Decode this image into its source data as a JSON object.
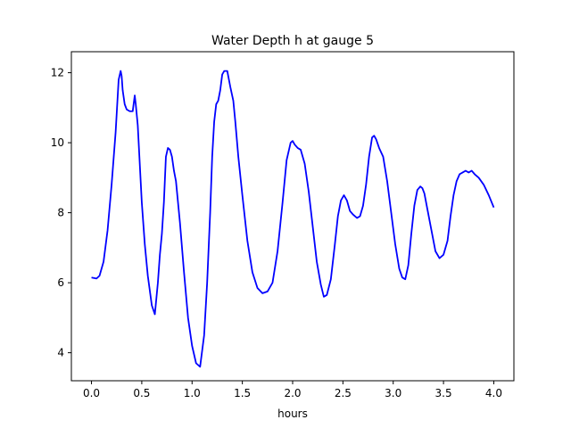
{
  "chart_data": {
    "type": "line",
    "title": "Water Depth h at gauge 5",
    "xlabel": "hours",
    "ylabel": "",
    "xlim": [
      -0.2,
      4.2
    ],
    "ylim": [
      3.2,
      12.6
    ],
    "xticks": [
      0.0,
      0.5,
      1.0,
      1.5,
      2.0,
      2.5,
      3.0,
      3.5,
      4.0
    ],
    "xtick_labels": [
      "0.0",
      "0.5",
      "1.0",
      "1.5",
      "2.0",
      "2.5",
      "3.0",
      "3.5",
      "4.0"
    ],
    "yticks": [
      4,
      6,
      8,
      10,
      12
    ],
    "ytick_labels": [
      "4",
      "6",
      "8",
      "10",
      "12"
    ],
    "grid": false,
    "series": [
      {
        "color": "#0000ff",
        "x": [
          0.0,
          0.05,
          0.08,
          0.12,
          0.16,
          0.2,
          0.24,
          0.27,
          0.29,
          0.3,
          0.31,
          0.33,
          0.35,
          0.38,
          0.41,
          0.43,
          0.44,
          0.46,
          0.48,
          0.5,
          0.53,
          0.56,
          0.6,
          0.63,
          0.66,
          0.68,
          0.7,
          0.72,
          0.74,
          0.76,
          0.78,
          0.8,
          0.82,
          0.84,
          0.88,
          0.92,
          0.96,
          1.0,
          1.04,
          1.08,
          1.12,
          1.15,
          1.18,
          1.2,
          1.22,
          1.24,
          1.26,
          1.28,
          1.3,
          1.32,
          1.35,
          1.38,
          1.41,
          1.43,
          1.46,
          1.5,
          1.55,
          1.6,
          1.65,
          1.7,
          1.75,
          1.8,
          1.85,
          1.9,
          1.94,
          1.98,
          2.0,
          2.02,
          2.05,
          2.08,
          2.12,
          2.16,
          2.2,
          2.24,
          2.28,
          2.31,
          2.34,
          2.38,
          2.42,
          2.45,
          2.48,
          2.51,
          2.54,
          2.57,
          2.6,
          2.64,
          2.67,
          2.7,
          2.73,
          2.76,
          2.79,
          2.81,
          2.83,
          2.86,
          2.9,
          2.94,
          2.98,
          3.02,
          3.06,
          3.09,
          3.12,
          3.15,
          3.18,
          3.21,
          3.24,
          3.27,
          3.29,
          3.31,
          3.34,
          3.38,
          3.42,
          3.46,
          3.5,
          3.54,
          3.57,
          3.6,
          3.63,
          3.66,
          3.69,
          3.72,
          3.75,
          3.78,
          3.81,
          3.85,
          3.9,
          3.95,
          4.0
        ],
        "y": [
          6.15,
          6.12,
          6.2,
          6.6,
          7.5,
          8.8,
          10.3,
          11.8,
          12.05,
          11.9,
          11.5,
          11.1,
          10.95,
          10.9,
          10.9,
          11.35,
          11.1,
          10.5,
          9.4,
          8.3,
          7.1,
          6.2,
          5.35,
          5.1,
          6.0,
          6.8,
          7.4,
          8.3,
          9.6,
          9.85,
          9.8,
          9.6,
          9.2,
          8.9,
          7.7,
          6.3,
          5.0,
          4.2,
          3.7,
          3.6,
          4.5,
          6.0,
          8.0,
          9.6,
          10.6,
          11.1,
          11.2,
          11.5,
          11.95,
          12.05,
          12.05,
          11.6,
          11.2,
          10.6,
          9.6,
          8.5,
          7.2,
          6.3,
          5.85,
          5.7,
          5.75,
          6.0,
          6.9,
          8.3,
          9.5,
          10.0,
          10.05,
          9.95,
          9.85,
          9.8,
          9.4,
          8.6,
          7.6,
          6.6,
          5.95,
          5.6,
          5.65,
          6.1,
          7.1,
          7.9,
          8.35,
          8.5,
          8.35,
          8.05,
          7.95,
          7.85,
          7.9,
          8.2,
          8.8,
          9.6,
          10.15,
          10.2,
          10.1,
          9.85,
          9.6,
          8.9,
          8.0,
          7.1,
          6.4,
          6.15,
          6.1,
          6.5,
          7.4,
          8.2,
          8.65,
          8.75,
          8.7,
          8.55,
          8.1,
          7.5,
          6.9,
          6.7,
          6.8,
          7.2,
          7.9,
          8.5,
          8.9,
          9.1,
          9.15,
          9.2,
          9.15,
          9.2,
          9.1,
          9.0,
          8.8,
          8.5,
          8.15
        ]
      }
    ]
  }
}
